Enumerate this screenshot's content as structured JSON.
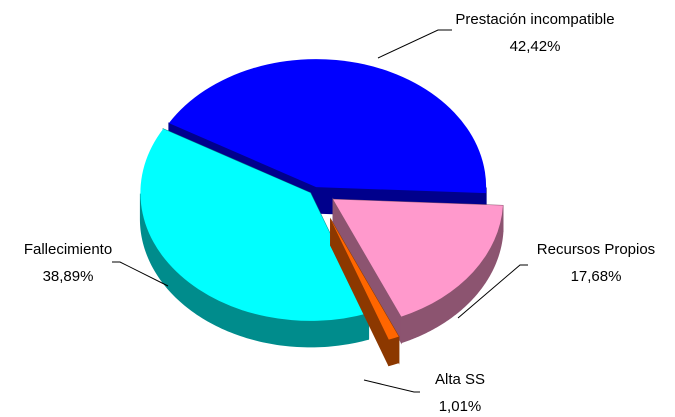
{
  "chart_data": {
    "type": "pie",
    "categories": [
      "Prestación incompatible",
      "Recursos Propios",
      "Alta SS",
      "Fallecimiento"
    ],
    "values": [
      42.42,
      17.68,
      1.01,
      38.89
    ],
    "value_labels": [
      "42,42%",
      "17,68%",
      "1,01%",
      "38,89%"
    ],
    "colors": [
      "#0000ff",
      "#ff99cc",
      "#ff6600",
      "#00ffff"
    ]
  }
}
